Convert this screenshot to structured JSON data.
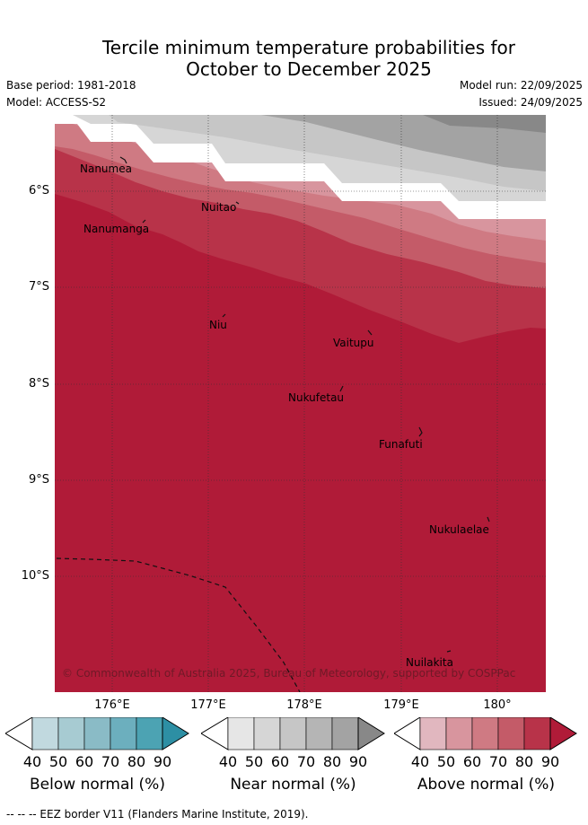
{
  "title_line1": "Tercile minimum temperature probabilities for",
  "title_line2": "October to December 2025",
  "base_period": "Base period: 1981-2018",
  "model": "Model: ACCESS-S2",
  "model_run": "Model run: 22/09/2025",
  "issued": "Issued: 24/09/2025",
  "map": {
    "lat_ticks": [
      "6°S",
      "7°S",
      "8°S",
      "9°S",
      "10°S"
    ],
    "lon_ticks": [
      "176°E",
      "177°E",
      "178°E",
      "179°E",
      "180°"
    ],
    "places": [
      {
        "name": "Nanumea"
      },
      {
        "name": "Nanumanga"
      },
      {
        "name": "Nuitao"
      },
      {
        "name": "Niu"
      },
      {
        "name": "Vaitupu"
      },
      {
        "name": "Nukufetau"
      },
      {
        "name": "Funafuti"
      },
      {
        "name": "Nukulaelae"
      },
      {
        "name": "Nuilakita"
      }
    ],
    "copyright": "© Commonwealth of Australia 2025, Bureau of Meteorology, supported by COSPPac"
  },
  "colorbars": [
    {
      "title": "Below normal (%)",
      "ticks": [
        "40",
        "50",
        "60",
        "70",
        "80",
        "90"
      ],
      "colors": [
        "#ffffff",
        "#c1d9df",
        "#a7cbd2",
        "#8abbc6",
        "#6cafbe",
        "#4ca3b3",
        "#2d8fa4"
      ]
    },
    {
      "title": "Near normal (%)",
      "ticks": [
        "40",
        "50",
        "60",
        "70",
        "80",
        "90"
      ],
      "colors": [
        "#ffffff",
        "#e6e6e6",
        "#d6d6d6",
        "#c6c6c6",
        "#b5b5b5",
        "#a3a3a3",
        "#888888"
      ]
    },
    {
      "title": "Above normal (%)",
      "ticks": [
        "40",
        "50",
        "60",
        "70",
        "80",
        "90"
      ],
      "colors": [
        "#ffffff",
        "#e1b7bf",
        "#d8959e",
        "#cf7a83",
        "#c45b68",
        "#b83349",
        "#b01b38"
      ]
    }
  ],
  "footer": "--  --  -- EEZ border V11 (Flanders Marine Institute, 2019)."
}
